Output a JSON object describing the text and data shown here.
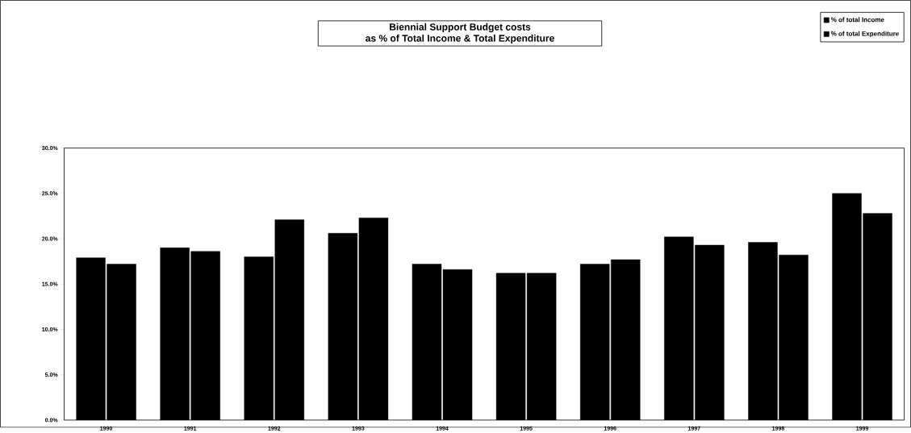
{
  "chart_data": {
    "type": "bar",
    "title": "Biennial Support Budget costs\nas % of Total Income & Total Expenditure",
    "categories": [
      "1990",
      "1991",
      "1992",
      "1993",
      "1994",
      "1995",
      "1996",
      "1997",
      "1998",
      "1999"
    ],
    "series": [
      {
        "name": "% of total Income",
        "color": "#000000",
        "values": [
          17.9,
          19.0,
          18.0,
          20.6,
          17.2,
          16.2,
          17.2,
          20.2,
          19.6,
          25.0
        ]
      },
      {
        "name": "% of total Expenditure",
        "color": "#000000",
        "values": [
          17.2,
          18.6,
          22.1,
          22.3,
          16.6,
          16.2,
          17.7,
          19.3,
          18.2,
          22.8
        ]
      }
    ],
    "ylim": [
      0,
      30
    ],
    "yticks": [
      {
        "value": 0,
        "label": "0.0%"
      },
      {
        "value": 5,
        "label": "5.0%"
      },
      {
        "value": 10,
        "label": "10.0%"
      },
      {
        "value": 15,
        "label": "15.0%"
      },
      {
        "value": 20,
        "label": "20.0%"
      },
      {
        "value": 25,
        "label": "25.0%"
      },
      {
        "value": 30,
        "label": "30.0%"
      }
    ],
    "grid": false,
    "legend": "top right"
  }
}
